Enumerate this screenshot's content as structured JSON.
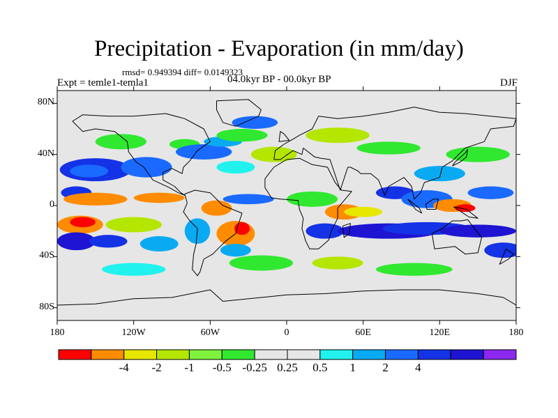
{
  "title": "Precipitation - Evaporation (in mm/day)",
  "stats_text": "rmsd= 0.949394 diff= 0.0149323",
  "experiment_label": "Expt = temle1-temla1",
  "period_label": "04.0kyr BP - 00.0kyr BP",
  "season_label": "DJF",
  "map": {
    "projection": "cylindrical equidistant",
    "lon_range": [
      -180,
      180
    ],
    "lat_range": [
      -90,
      90
    ],
    "lat_ticks": [
      {
        "value": 80,
        "label": "80N"
      },
      {
        "value": 40,
        "label": "40N"
      },
      {
        "value": 0,
        "label": "0"
      },
      {
        "value": -40,
        "label": "40S"
      },
      {
        "value": -80,
        "label": "80S"
      }
    ],
    "lon_ticks": [
      {
        "value": -180,
        "label": "180"
      },
      {
        "value": -120,
        "label": "120W"
      },
      {
        "value": -60,
        "label": "60W"
      },
      {
        "value": 0,
        "label": "0"
      },
      {
        "value": 60,
        "label": "60E"
      },
      {
        "value": 120,
        "label": "120E"
      },
      {
        "value": 180,
        "label": "180"
      }
    ],
    "background_color": "#e6e6e6",
    "coastline_color": "#000000"
  },
  "colorbar": {
    "colors": [
      "#ff0000",
      "#ff8c00",
      "#e6e600",
      "#b4e600",
      "#7ef23c",
      "#30e830",
      "#e6e6e6",
      "#e6e6e6",
      "#22f2ee",
      "#0aaaf2",
      "#1a6aff",
      "#1432e6",
      "#1e14d2",
      "#8c28f0"
    ],
    "labels": [
      {
        "label": "-4",
        "after_box": 1
      },
      {
        "label": "-2",
        "after_box": 2
      },
      {
        "label": "-1",
        "after_box": 3
      },
      {
        "label": "-0.5",
        "after_box": 4
      },
      {
        "label": "-0.25",
        "after_box": 5
      },
      {
        "label": "0.25",
        "after_box": 6
      },
      {
        "label": "0.5",
        "after_box": 7
      },
      {
        "label": "1",
        "after_box": 8
      },
      {
        "label": "2",
        "after_box": 9
      },
      {
        "label": "4",
        "after_box": 10
      }
    ]
  },
  "anomaly_blobs": [
    {
      "lon": -150,
      "lat": 28,
      "rx": 28,
      "ry": 9,
      "color": "#1432e6"
    },
    {
      "lon": -155,
      "lat": 27,
      "rx": 15,
      "ry": 5,
      "color": "#1a6aff"
    },
    {
      "lon": -110,
      "lat": 30,
      "rx": 20,
      "ry": 8,
      "color": "#1a6aff"
    },
    {
      "lon": -165,
      "lat": 10,
      "rx": 12,
      "ry": 5,
      "color": "#1432e6"
    },
    {
      "lon": -150,
      "lat": 5,
      "rx": 25,
      "ry": 5,
      "color": "#ff8c00"
    },
    {
      "lon": -100,
      "lat": 6,
      "rx": 20,
      "ry": 4,
      "color": "#ff8c00"
    },
    {
      "lon": -162,
      "lat": -15,
      "rx": 18,
      "ry": 7,
      "color": "#ff8c00"
    },
    {
      "lon": -160,
      "lat": -13,
      "rx": 10,
      "ry": 4,
      "color": "#ff0000"
    },
    {
      "lon": -165,
      "lat": -28,
      "rx": 15,
      "ry": 7,
      "color": "#1e14d2"
    },
    {
      "lon": -140,
      "lat": -28,
      "rx": 15,
      "ry": 5,
      "color": "#1432e6"
    },
    {
      "lon": -120,
      "lat": -15,
      "rx": 22,
      "ry": 6,
      "color": "#b4e600"
    },
    {
      "lon": -100,
      "lat": -30,
      "rx": 15,
      "ry": 6,
      "color": "#0aaaf2"
    },
    {
      "lon": -130,
      "lat": 50,
      "rx": 20,
      "ry": 6,
      "color": "#30e830"
    },
    {
      "lon": -80,
      "lat": 48,
      "rx": 12,
      "ry": 4,
      "color": "#30e830"
    },
    {
      "lon": -65,
      "lat": 42,
      "rx": 22,
      "ry": 6,
      "color": "#1a6aff"
    },
    {
      "lon": -50,
      "lat": 50,
      "rx": 15,
      "ry": 4,
      "color": "#0aaaf2"
    },
    {
      "lon": -35,
      "lat": 55,
      "rx": 20,
      "ry": 5,
      "color": "#30e830"
    },
    {
      "lon": -25,
      "lat": 65,
      "rx": 18,
      "ry": 5,
      "color": "#1a6aff"
    },
    {
      "lon": -10,
      "lat": 40,
      "rx": 18,
      "ry": 6,
      "color": "#b4e600"
    },
    {
      "lon": -40,
      "lat": 30,
      "rx": 15,
      "ry": 5,
      "color": "#22f2ee"
    },
    {
      "lon": -30,
      "lat": 5,
      "rx": 20,
      "ry": 4,
      "color": "#1a6aff"
    },
    {
      "lon": -55,
      "lat": -2,
      "rx": 12,
      "ry": 6,
      "color": "#ff8c00"
    },
    {
      "lon": -70,
      "lat": -20,
      "rx": 10,
      "ry": 10,
      "color": "#0aaaf2"
    },
    {
      "lon": -40,
      "lat": -22,
      "rx": 15,
      "ry": 10,
      "color": "#ff8c00"
    },
    {
      "lon": -35,
      "lat": -18,
      "rx": 6,
      "ry": 5,
      "color": "#ff0000"
    },
    {
      "lon": -40,
      "lat": -35,
      "rx": 12,
      "ry": 5,
      "color": "#0aaaf2"
    },
    {
      "lon": -20,
      "lat": -45,
      "rx": 25,
      "ry": 6,
      "color": "#30e830"
    },
    {
      "lon": 20,
      "lat": 5,
      "rx": 20,
      "ry": 6,
      "color": "#30e830"
    },
    {
      "lon": 30,
      "lat": -20,
      "rx": 15,
      "ry": 6,
      "color": "#1432e6"
    },
    {
      "lon": 45,
      "lat": -5,
      "rx": 15,
      "ry": 6,
      "color": "#ff8c00"
    },
    {
      "lon": 60,
      "lat": -5,
      "rx": 15,
      "ry": 4,
      "color": "#e6e600"
    },
    {
      "lon": 80,
      "lat": -20,
      "rx": 40,
      "ry": 6,
      "color": "#1e14d2"
    },
    {
      "lon": 110,
      "lat": -18,
      "rx": 35,
      "ry": 5,
      "color": "#1432e6"
    },
    {
      "lon": 150,
      "lat": -20,
      "rx": 30,
      "ry": 5,
      "color": "#1e14d2"
    },
    {
      "lon": 170,
      "lat": -35,
      "rx": 15,
      "ry": 6,
      "color": "#1432e6"
    },
    {
      "lon": 85,
      "lat": 10,
      "rx": 15,
      "ry": 5,
      "color": "#1432e6"
    },
    {
      "lon": 110,
      "lat": 5,
      "rx": 20,
      "ry": 7,
      "color": "#1a6aff"
    },
    {
      "lon": 130,
      "lat": 0,
      "rx": 15,
      "ry": 5,
      "color": "#ff8c00"
    },
    {
      "lon": 140,
      "lat": -2,
      "rx": 8,
      "ry": 3,
      "color": "#ff0000"
    },
    {
      "lon": 160,
      "lat": 10,
      "rx": 18,
      "ry": 5,
      "color": "#1a6aff"
    },
    {
      "lon": 150,
      "lat": 40,
      "rx": 25,
      "ry": 6,
      "color": "#30e830"
    },
    {
      "lon": 120,
      "lat": 25,
      "rx": 20,
      "ry": 6,
      "color": "#0aaaf2"
    },
    {
      "lon": 40,
      "lat": 55,
      "rx": 25,
      "ry": 6,
      "color": "#b4e600"
    },
    {
      "lon": 80,
      "lat": 45,
      "rx": 25,
      "ry": 5,
      "color": "#30e830"
    },
    {
      "lon": 100,
      "lat": -50,
      "rx": 30,
      "ry": 5,
      "color": "#30e830"
    },
    {
      "lon": -120,
      "lat": -50,
      "rx": 25,
      "ry": 5,
      "color": "#22f2ee"
    },
    {
      "lon": 40,
      "lat": -45,
      "rx": 20,
      "ry": 5,
      "color": "#b4e600"
    }
  ],
  "coastlines": [
    {
      "name": "North America",
      "points": [
        [
          -168,
          66
        ],
        [
          -160,
          71
        ],
        [
          -140,
          70
        ],
        [
          -120,
          70
        ],
        [
          -95,
          72
        ],
        [
          -80,
          68
        ],
        [
          -65,
          60
        ],
        [
          -60,
          50
        ],
        [
          -70,
          43
        ],
        [
          -76,
          35
        ],
        [
          -81,
          30
        ],
        [
          -82,
          25
        ],
        [
          -90,
          29
        ],
        [
          -97,
          26
        ],
        [
          -97,
          20
        ],
        [
          -88,
          15
        ],
        [
          -83,
          10
        ],
        [
          -80,
          8
        ],
        [
          -85,
          10
        ],
        [
          -92,
          14
        ],
        [
          -105,
          20
        ],
        [
          -112,
          30
        ],
        [
          -118,
          34
        ],
        [
          -124,
          42
        ],
        [
          -125,
          50
        ],
        [
          -135,
          58
        ],
        [
          -150,
          60
        ],
        [
          -160,
          58
        ],
        [
          -168,
          66
        ]
      ]
    },
    {
      "name": "South America",
      "points": [
        [
          -80,
          9
        ],
        [
          -72,
          12
        ],
        [
          -60,
          10
        ],
        [
          -50,
          0
        ],
        [
          -35,
          -6
        ],
        [
          -38,
          -15
        ],
        [
          -40,
          -22
        ],
        [
          -48,
          -28
        ],
        [
          -58,
          -38
        ],
        [
          -65,
          -42
        ],
        [
          -68,
          -52
        ],
        [
          -70,
          -55
        ],
        [
          -74,
          -50
        ],
        [
          -73,
          -38
        ],
        [
          -71,
          -30
        ],
        [
          -70,
          -18
        ],
        [
          -76,
          -12
        ],
        [
          -81,
          -5
        ],
        [
          -78,
          2
        ],
        [
          -80,
          9
        ]
      ]
    },
    {
      "name": "Greenland",
      "points": [
        [
          -55,
          82
        ],
        [
          -30,
          83
        ],
        [
          -20,
          75
        ],
        [
          -22,
          70
        ],
        [
          -40,
          62
        ],
        [
          -50,
          65
        ],
        [
          -55,
          75
        ],
        [
          -55,
          82
        ]
      ]
    },
    {
      "name": "Eurasia",
      "points": [
        [
          -10,
          36
        ],
        [
          -9,
          43
        ],
        [
          -2,
          48
        ],
        [
          5,
          52
        ],
        [
          10,
          55
        ],
        [
          20,
          60
        ],
        [
          25,
          70
        ],
        [
          40,
          68
        ],
        [
          60,
          70
        ],
        [
          80,
          73
        ],
        [
          100,
          77
        ],
        [
          120,
          73
        ],
        [
          140,
          72
        ],
        [
          160,
          70
        ],
        [
          180,
          68
        ],
        [
          178,
          62
        ],
        [
          160,
          60
        ],
        [
          155,
          50
        ],
        [
          140,
          45
        ],
        [
          130,
          35
        ],
        [
          122,
          30
        ],
        [
          120,
          22
        ],
        [
          108,
          18
        ],
        [
          105,
          10
        ],
        [
          100,
          5
        ],
        [
          98,
          15
        ],
        [
          92,
          22
        ],
        [
          80,
          15
        ],
        [
          77,
          8
        ],
        [
          72,
          20
        ],
        [
          66,
          25
        ],
        [
          58,
          25
        ],
        [
          56,
          27
        ],
        [
          50,
          30
        ],
        [
          48,
          30
        ],
        [
          43,
          15
        ],
        [
          42,
          12
        ],
        [
          36,
          30
        ],
        [
          34,
          36
        ],
        [
          27,
          37
        ],
        [
          22,
          38
        ],
        [
          13,
          45
        ],
        [
          12,
          40
        ],
        [
          5,
          43
        ],
        [
          -5,
          36
        ],
        [
          -10,
          36
        ]
      ]
    },
    {
      "name": "Africa",
      "points": [
        [
          -17,
          21
        ],
        [
          -17,
          14
        ],
        [
          -12,
          6
        ],
        [
          -5,
          5
        ],
        [
          9,
          4
        ],
        [
          10,
          -3
        ],
        [
          13,
          -10
        ],
        [
          12,
          -18
        ],
        [
          15,
          -28
        ],
        [
          18,
          -34
        ],
        [
          25,
          -34
        ],
        [
          33,
          -27
        ],
        [
          35,
          -20
        ],
        [
          40,
          -10
        ],
        [
          40,
          -2
        ],
        [
          51,
          11
        ],
        [
          43,
          12
        ],
        [
          38,
          18
        ],
        [
          32,
          30
        ],
        [
          20,
          32
        ],
        [
          10,
          37
        ],
        [
          0,
          36
        ],
        [
          -10,
          30
        ],
        [
          -17,
          21
        ]
      ]
    },
    {
      "name": "Australia",
      "points": [
        [
          114,
          -22
        ],
        [
          122,
          -18
        ],
        [
          130,
          -12
        ],
        [
          137,
          -12
        ],
        [
          142,
          -11
        ],
        [
          145,
          -15
        ],
        [
          153,
          -25
        ],
        [
          150,
          -37
        ],
        [
          140,
          -38
        ],
        [
          132,
          -32
        ],
        [
          116,
          -34
        ],
        [
          114,
          -22
        ]
      ]
    },
    {
      "name": "Antarctica",
      "points": [
        [
          -180,
          -78
        ],
        [
          -150,
          -77
        ],
        [
          -120,
          -73
        ],
        [
          -90,
          -72
        ],
        [
          -60,
          -66
        ],
        [
          -50,
          -75
        ],
        [
          -20,
          -72
        ],
        [
          0,
          -70
        ],
        [
          30,
          -69
        ],
        [
          60,
          -67
        ],
        [
          90,
          -66
        ],
        [
          120,
          -66
        ],
        [
          150,
          -69
        ],
        [
          170,
          -72
        ],
        [
          180,
          -78
        ]
      ]
    },
    {
      "name": "Madagascar",
      "points": [
        [
          44,
          -16
        ],
        [
          50,
          -14
        ],
        [
          49,
          -22
        ],
        [
          45,
          -25
        ],
        [
          44,
          -16
        ]
      ]
    },
    {
      "name": "Borneo",
      "points": [
        [
          109,
          1
        ],
        [
          115,
          5
        ],
        [
          119,
          5
        ],
        [
          117,
          -3
        ],
        [
          110,
          -3
        ],
        [
          109,
          1
        ]
      ]
    },
    {
      "name": "Sumatra",
      "points": [
        [
          95,
          5
        ],
        [
          104,
          -2
        ],
        [
          106,
          -6
        ],
        [
          101,
          -3
        ],
        [
          95,
          5
        ]
      ]
    },
    {
      "name": "New Guinea",
      "points": [
        [
          131,
          -1
        ],
        [
          141,
          -3
        ],
        [
          150,
          -10
        ],
        [
          143,
          -9
        ],
        [
          137,
          -5
        ],
        [
          131,
          -1
        ]
      ]
    },
    {
      "name": "Japan",
      "points": [
        [
          130,
          31
        ],
        [
          136,
          34
        ],
        [
          141,
          38
        ],
        [
          142,
          44
        ],
        [
          140,
          41
        ],
        [
          132,
          34
        ],
        [
          130,
          31
        ]
      ]
    },
    {
      "name": "Great Britain",
      "points": [
        [
          -6,
          50
        ],
        [
          2,
          51
        ],
        [
          -2,
          56
        ],
        [
          -5,
          58
        ],
        [
          -6,
          50
        ]
      ]
    },
    {
      "name": "New Zealand",
      "points": [
        [
          172,
          -34
        ],
        [
          178,
          -38
        ],
        [
          174,
          -42
        ],
        [
          167,
          -46
        ],
        [
          172,
          -34
        ]
      ]
    }
  ]
}
